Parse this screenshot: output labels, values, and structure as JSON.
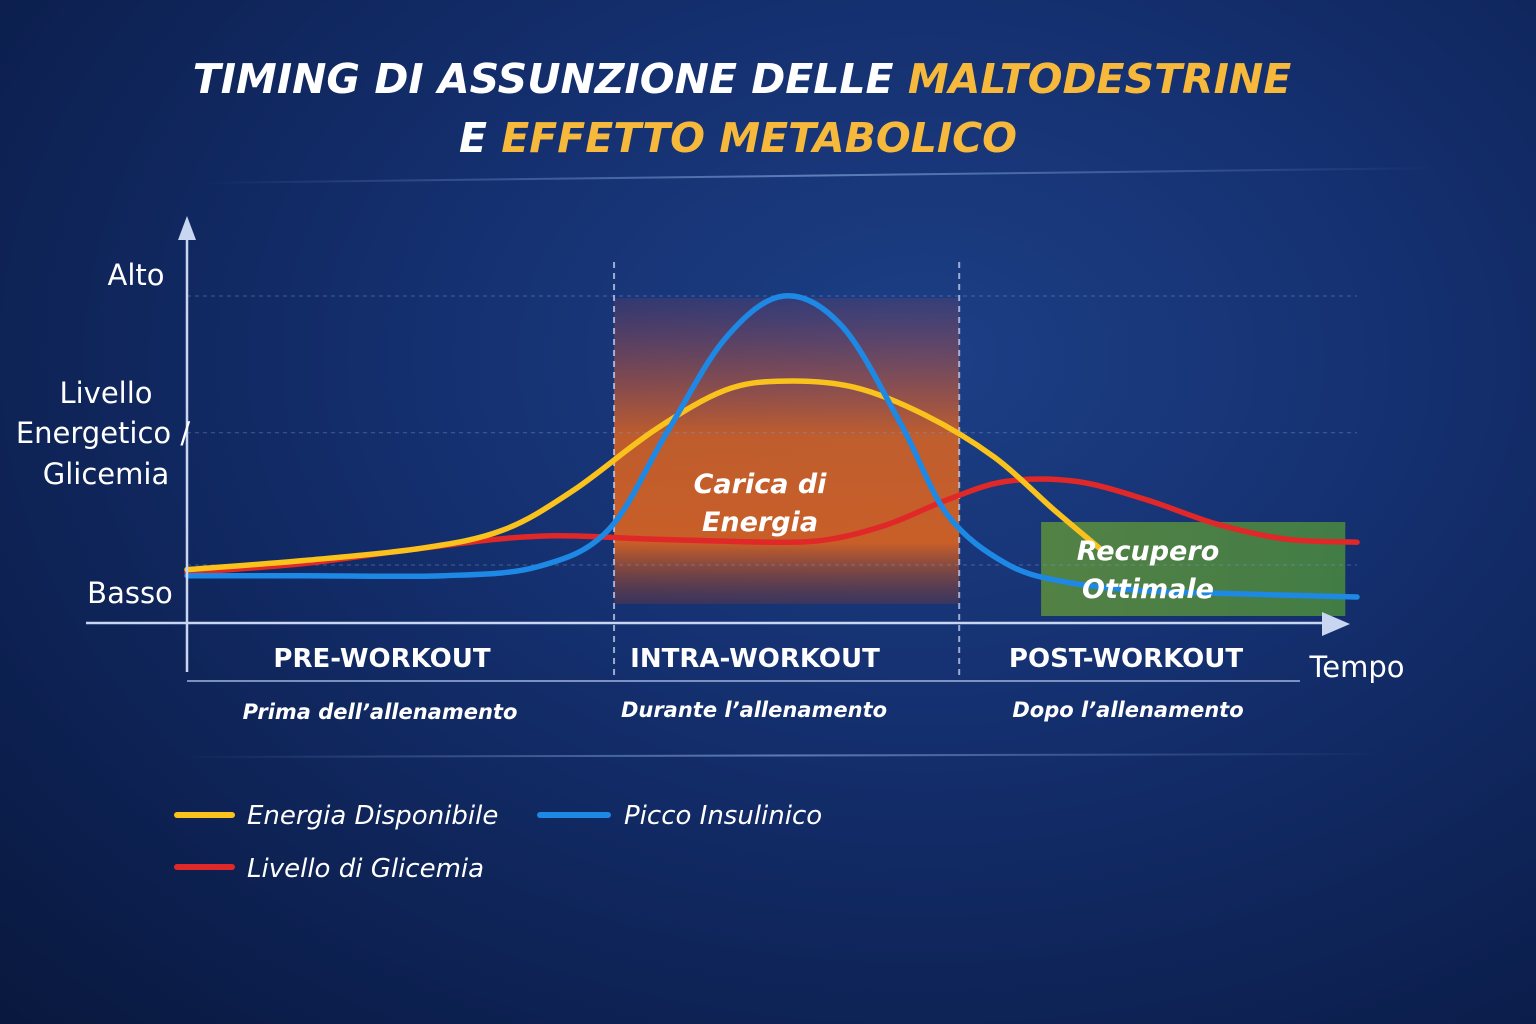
{
  "title": {
    "line1_prefix": "TIMING DI ASSUNZIONE DELLE ",
    "line1_highlight": "MALTODESTRINE",
    "line2_prefix": "E ",
    "line2_highlight": "EFFETTO METABOLICO"
  },
  "colors": {
    "white": "#ffffff",
    "highlight": "#f6b93b",
    "energia": "#f9c21c",
    "insulina": "#1e88e5",
    "glicemia": "#e02828",
    "carica_zone": "#e8661a",
    "recupero_zone": "#4f8a3a"
  },
  "chart_data": {
    "type": "line",
    "title": "TIMING DI ASSUNZIONE DELLE MALTODESTRINE E EFFETTO METABOLICO",
    "xlabel": "Tempo",
    "ylabel": "Livello Energetico / Glicemia",
    "y_ticks": [
      "Basso",
      "Alto"
    ],
    "ylim": [
      0,
      1
    ],
    "xlim": [
      0,
      1
    ],
    "grid": "dashed horizontal",
    "phases": [
      {
        "name": "PRE-WORKOUT",
        "subtitle": "Prima dell’allenamento",
        "start": 0.0,
        "end": 0.365
      },
      {
        "name": "INTRA-WORKOUT",
        "subtitle": "Durante l’allenamento",
        "start": 0.365,
        "end": 0.66
      },
      {
        "name": "POST-WORKOUT",
        "subtitle": "Dopo l’allenamento",
        "start": 0.66,
        "end": 1.0
      }
    ],
    "zones": [
      {
        "label_line1": "Carica di",
        "label_line2": "Energia",
        "x_start": 0.365,
        "x_end": 0.66
      },
      {
        "label_line1": "Recupero",
        "label_line2": "Ottimale",
        "x_start": 0.73,
        "x_end": 0.99
      }
    ],
    "series": [
      {
        "name": "Energia Disponibile",
        "color": "#f9c21c",
        "x": [
          0.0,
          0.1,
          0.2,
          0.27,
          0.33,
          0.4,
          0.46,
          0.51,
          0.57,
          0.63,
          0.69,
          0.74,
          0.78
        ],
        "y": [
          0.1,
          0.13,
          0.17,
          0.23,
          0.36,
          0.56,
          0.69,
          0.72,
          0.7,
          0.61,
          0.47,
          0.3,
          0.17
        ]
      },
      {
        "name": "Picco Insulinico",
        "color": "#1e88e5",
        "x": [
          0.0,
          0.1,
          0.22,
          0.3,
          0.36,
          0.41,
          0.46,
          0.51,
          0.56,
          0.61,
          0.65,
          0.7,
          0.75,
          0.82,
          0.9,
          1.0
        ],
        "y": [
          0.08,
          0.08,
          0.08,
          0.11,
          0.23,
          0.55,
          0.86,
          1.0,
          0.9,
          0.58,
          0.28,
          0.12,
          0.06,
          0.03,
          0.02,
          0.01
        ]
      },
      {
        "name": "Livello di Glicemia",
        "color": "#e02828",
        "x": [
          0.0,
          0.1,
          0.2,
          0.3,
          0.4,
          0.5,
          0.55,
          0.6,
          0.65,
          0.7,
          0.76,
          0.82,
          0.88,
          0.94,
          1.0
        ],
        "y": [
          0.09,
          0.12,
          0.17,
          0.21,
          0.2,
          0.19,
          0.2,
          0.25,
          0.33,
          0.39,
          0.39,
          0.33,
          0.25,
          0.2,
          0.19
        ]
      }
    ]
  },
  "axis": {
    "y_high": "Alto",
    "y_low": "Basso",
    "y_title_line1": "Livello",
    "y_title_line2": "Energetico /",
    "y_title_line3": "Glicemia",
    "x_title": "Tempo"
  },
  "legend": {
    "energia": "Energia Disponibile",
    "insulina": "Picco Insulinico",
    "glicemia": "Livello di Glicemia"
  }
}
